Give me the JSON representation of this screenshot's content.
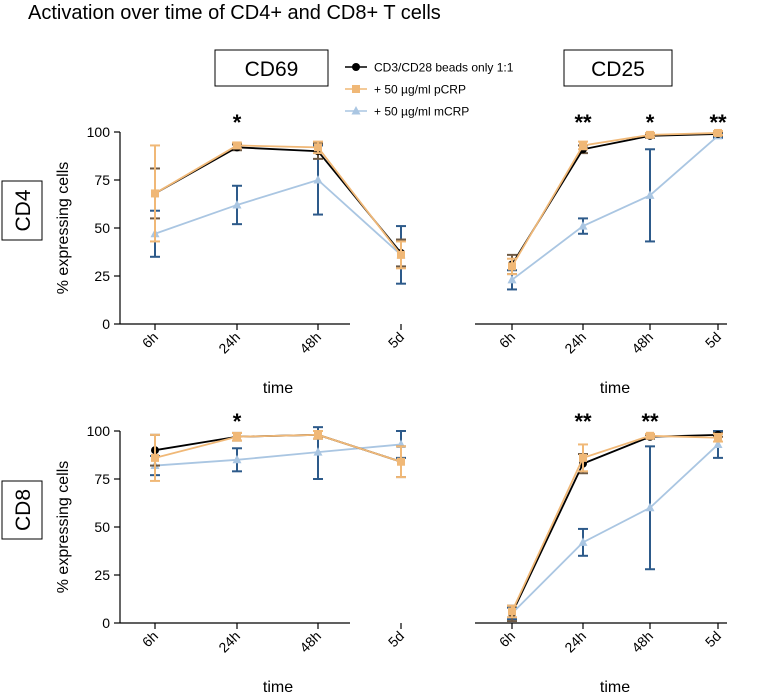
{
  "title": "Activation over time of CD4+ and CD8+ T cells",
  "column_labels": [
    "CD69",
    "CD25"
  ],
  "row_labels": [
    "CD4",
    "CD8"
  ],
  "legend": [
    {
      "label": "CD3/CD28 beads only 1:1",
      "marker": "circle"
    },
    {
      "label": "+ 50 µg/ml pCRP",
      "marker": "square"
    },
    {
      "label": "+ 50 µg/ml mCRP",
      "marker": "triangle"
    }
  ],
  "colors": {
    "beads": "#000000",
    "pcrp": "#f0b877",
    "mcrp": "#aac6e2",
    "error_bar_beads": "#6e5a45",
    "error_bar_mcrp": "#2d5a8a"
  },
  "chart_data": [
    {
      "type": "line",
      "panel": "CD4 CD69",
      "categories": [
        "6h",
        "24h",
        "48h",
        "5d"
      ],
      "xlabel": "time",
      "ylabel": "% expressing cells",
      "ylim": [
        0,
        100
      ],
      "yticks": [
        0,
        25,
        50,
        75,
        100
      ],
      "series": [
        {
          "name": "CD3/CD28 beads only 1:1",
          "values": [
            68,
            92,
            90,
            37
          ],
          "errors": [
            13,
            1.5,
            4,
            7
          ]
        },
        {
          "name": "+ 50 µg/ml pCRP",
          "values": [
            68,
            93,
            92,
            36
          ],
          "errors": [
            25,
            1.5,
            3,
            7
          ]
        },
        {
          "name": "+ 50 µg/ml mCRP",
          "values": [
            47,
            62,
            75,
            36
          ],
          "errors": [
            12,
            10,
            18,
            15
          ]
        }
      ],
      "significance": [
        "",
        "*",
        "",
        ""
      ]
    },
    {
      "type": "line",
      "panel": "CD4 CD25",
      "categories": [
        "6h",
        "24h",
        "48h",
        "5d"
      ],
      "xlabel": "time",
      "ylabel": "",
      "ylim": [
        0,
        100
      ],
      "series": [
        {
          "name": "CD3/CD28 beads only 1:1",
          "values": [
            31,
            91,
            98,
            99
          ],
          "errors": [
            5,
            2,
            1,
            1
          ]
        },
        {
          "name": "+ 50 µg/ml pCRP",
          "values": [
            30,
            93,
            98.5,
            99.5
          ],
          "errors": [
            4,
            2,
            1,
            1
          ]
        },
        {
          "name": "+ 50 µg/ml mCRP",
          "values": [
            23,
            51,
            67,
            98
          ],
          "errors": [
            5,
            4,
            24,
            1
          ]
        }
      ],
      "significance": [
        "",
        "**",
        "*",
        "**"
      ]
    },
    {
      "type": "line",
      "panel": "CD8 CD69",
      "categories": [
        "6h",
        "24h",
        "48h",
        "5d"
      ],
      "xlabel": "time",
      "ylabel": "% expressing cells",
      "ylim": [
        0,
        100
      ],
      "yticks": [
        0,
        25,
        50,
        75,
        100
      ],
      "series": [
        {
          "name": "CD3/CD28 beads only 1:1",
          "values": [
            90,
            97,
            98,
            84
          ],
          "errors": [
            8,
            2,
            2,
            8
          ]
        },
        {
          "name": "+ 50 µg/ml pCRP",
          "values": [
            86,
            97,
            98,
            84
          ],
          "errors": [
            12,
            2,
            2,
            8
          ]
        },
        {
          "name": "+ 50 µg/ml mCRP",
          "values": [
            82,
            85,
            89,
            93
          ],
          "errors": [
            5,
            6,
            14,
            7
          ]
        }
      ],
      "significance": [
        "",
        "*",
        "",
        ""
      ]
    },
    {
      "type": "line",
      "panel": "CD8 CD25",
      "categories": [
        "6h",
        "24h",
        "48h",
        "5d"
      ],
      "xlabel": "time",
      "ylabel": "",
      "ylim": [
        0,
        100
      ],
      "series": [
        {
          "name": "CD3/CD28 beads only 1:1",
          "values": [
            5,
            83,
            97,
            98
          ],
          "errors": [
            4,
            5,
            1,
            1
          ]
        },
        {
          "name": "+ 50 µg/ml pCRP",
          "values": [
            6,
            86,
            97.5,
            96.5
          ],
          "errors": [
            3,
            7,
            1,
            2
          ]
        },
        {
          "name": "+ 50 µg/ml mCRP",
          "values": [
            5,
            42,
            60,
            93
          ],
          "errors": [
            3,
            7,
            32,
            7
          ]
        }
      ],
      "significance": [
        "",
        "**",
        "**",
        ""
      ]
    }
  ]
}
